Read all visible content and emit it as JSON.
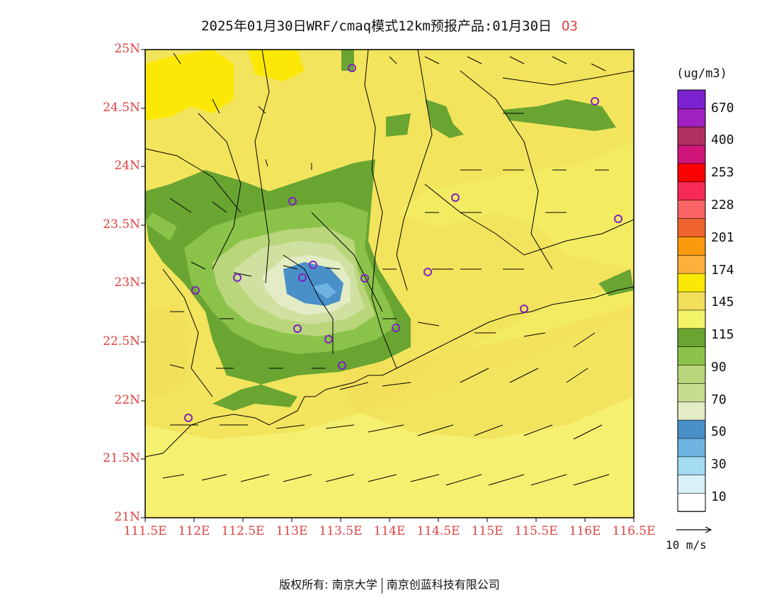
{
  "title": {
    "text": "2025年01月30日WRF/cmaq模式12km预报产品:01月30日",
    "pollutant": "O3"
  },
  "map": {
    "lon_labels": [
      "111.5E",
      "112E",
      "112.5E",
      "113E",
      "113.5E",
      "114E",
      "114.5E",
      "115E",
      "115.5E",
      "116E",
      "116.5E"
    ],
    "lat_labels": [
      "25N",
      "24.5N",
      "24N",
      "23.5N",
      "23N",
      "22.5N",
      "22N",
      "21.5N",
      "21N"
    ],
    "colors": {
      "sea_light": "#f7f06c",
      "land_base": "#f3ec63",
      "orange_light": "#f2de5a",
      "yellow_high": "#fbe806",
      "green_dark": "#6aa532",
      "green_mid": "#8bc34a",
      "green_light": "#b9d67a",
      "green_pale": "#cfe0a0",
      "pale": "#e3ecc4",
      "blue": "#4a90c8",
      "blue_light": "#6fb3e0",
      "station_ring": "#8020c0",
      "boundary": "#000000"
    }
  },
  "colorbar": {
    "unit": "(ug/m3)",
    "colors": [
      "#ffffff",
      "#d9f1f8",
      "#a4dcf3",
      "#6fb3e0",
      "#4a90c8",
      "#e3ecc4",
      "#c7dc8e",
      "#b9d67a",
      "#8bc34a",
      "#6aa532",
      "#f3f36a",
      "#f2de5a",
      "#fbe806",
      "#fbb13c",
      "#fb9a0c",
      "#f0642d",
      "#fb6464",
      "#f72a55",
      "#fb0000",
      "#d0157a",
      "#b03060",
      "#a020c0",
      "#7b22d0"
    ],
    "labels": [
      "10",
      "30",
      "50",
      "70",
      "90",
      "115",
      "145",
      "174",
      "201",
      "228",
      "253",
      "400",
      "670"
    ]
  },
  "ref_vector": {
    "label": "10 m/s"
  },
  "footer": {
    "left": "版权所有: 南京大学",
    "right": "南京创蓝科技有限公司"
  }
}
